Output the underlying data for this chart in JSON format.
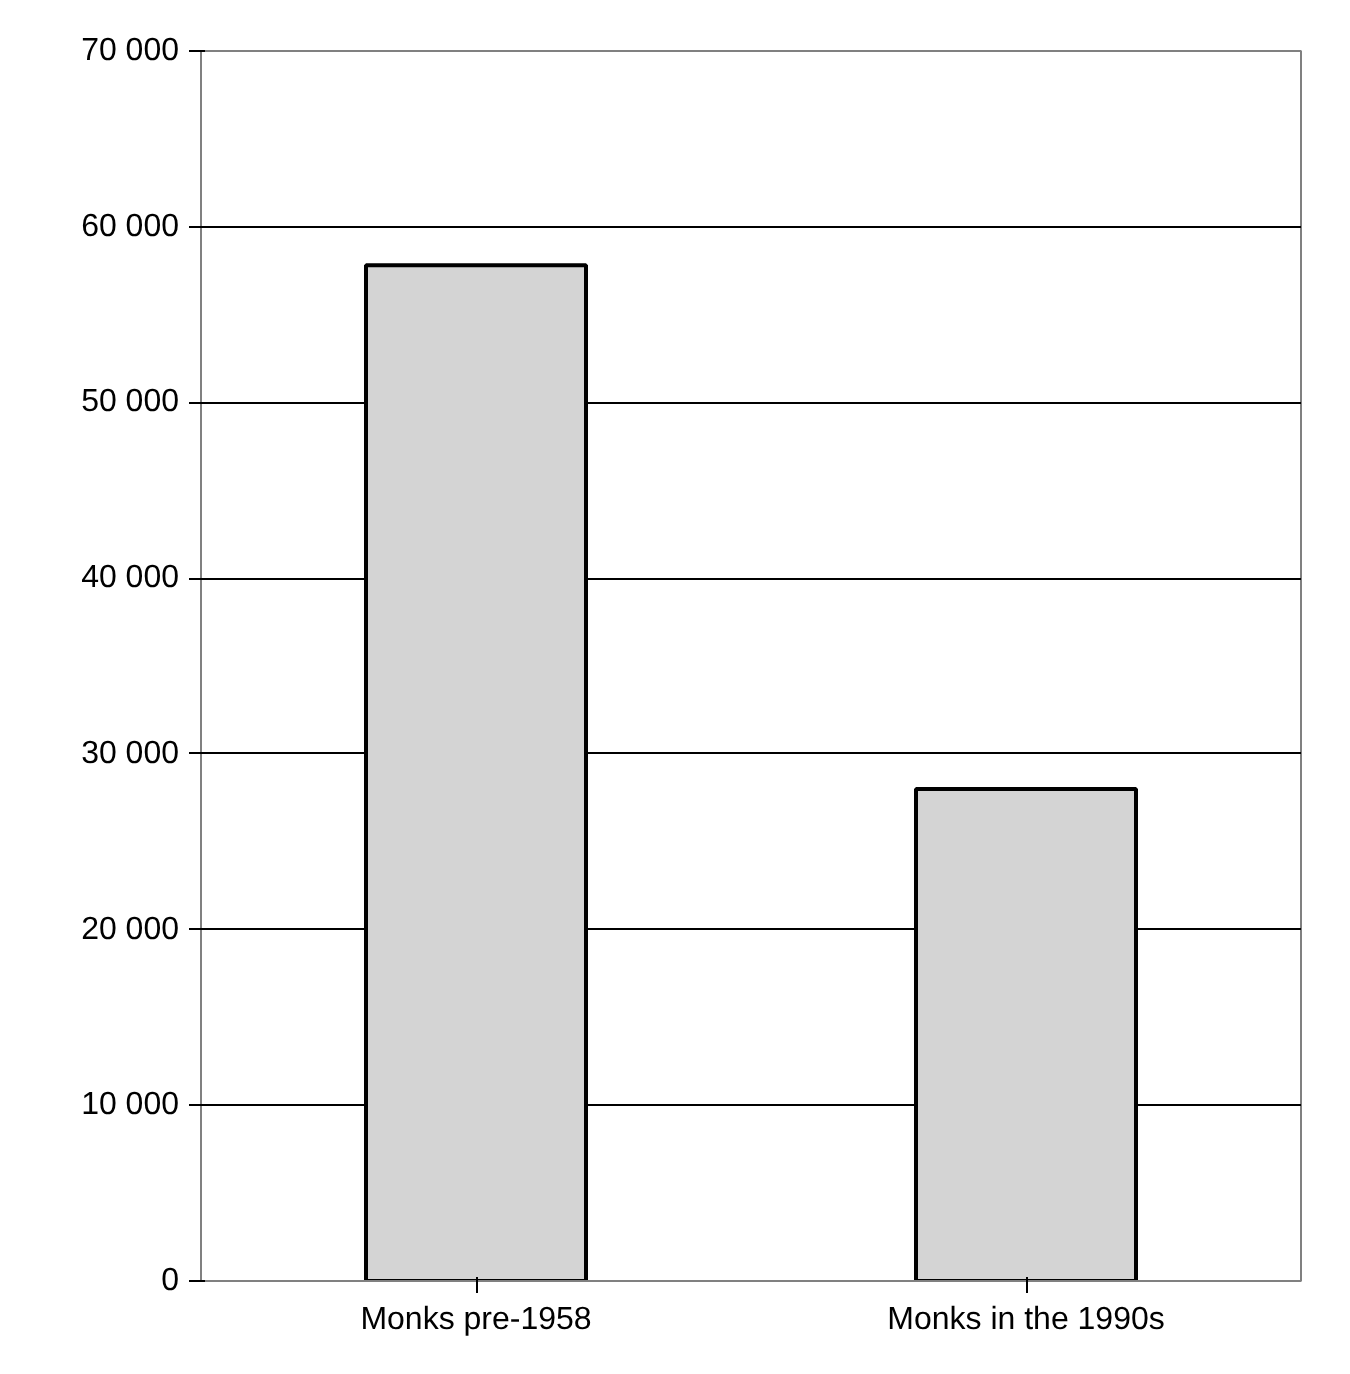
{
  "chart_data": {
    "type": "bar",
    "categories": [
      "Monks pre-1958",
      "Monks in the 1990s"
    ],
    "values": [
      57800,
      28000
    ],
    "color": "#d4d4d4",
    "ylim": [
      0,
      70000
    ],
    "yticks": [
      {
        "value": 0,
        "label": "0"
      },
      {
        "value": 10000,
        "label": "10 000"
      },
      {
        "value": 20000,
        "label": "20 000"
      },
      {
        "value": 30000,
        "label": "30 000"
      },
      {
        "value": 40000,
        "label": "40 000"
      },
      {
        "value": 50000,
        "label": "50 000"
      },
      {
        "value": 60000,
        "label": "60 000"
      },
      {
        "value": 70000,
        "label": "70 000"
      }
    ],
    "grid": "y"
  }
}
